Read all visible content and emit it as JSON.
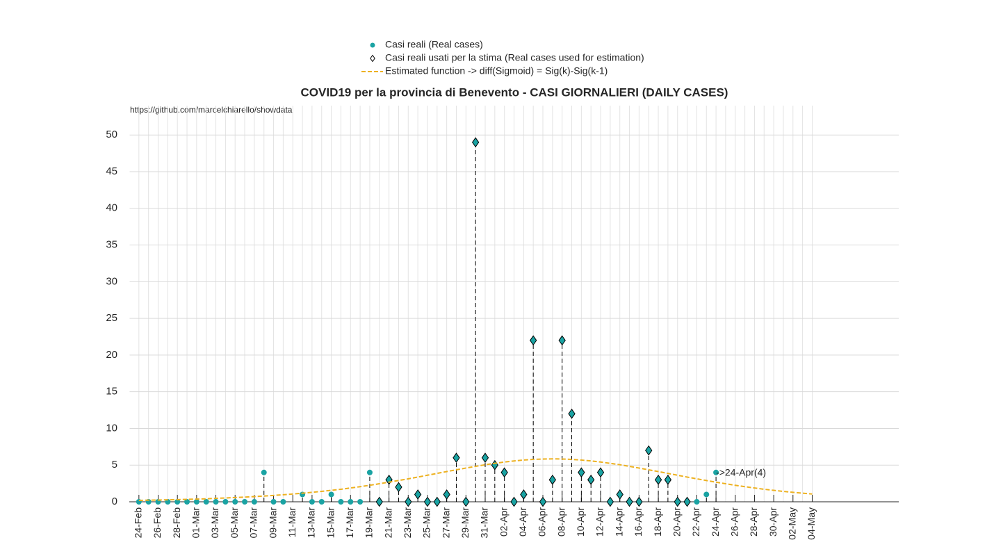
{
  "chart_data": {
    "type": "stem",
    "title": "COVID19 per la provincia di Benevento - CASI GIORNALIERI (DAILY CASES)",
    "source": "https://github.com/marcelchiarello/showdata",
    "categories": [
      "24-Feb",
      null,
      "26-Feb",
      null,
      "28-Feb",
      null,
      "01-Mar",
      null,
      "03-Mar",
      null,
      "05-Mar",
      null,
      "07-Mar",
      null,
      "09-Mar",
      null,
      "11-Mar",
      null,
      "13-Mar",
      null,
      "15-Mar",
      null,
      "17-Mar",
      null,
      "19-Mar",
      null,
      "21-Mar",
      null,
      "23-Mar",
      null,
      "25-Mar",
      null,
      "27-Mar",
      null,
      "29-Mar",
      null,
      "31-Mar",
      null,
      "02-Apr",
      null,
      "04-Apr",
      null,
      "06-Apr",
      null,
      "08-Apr",
      null,
      "10-Apr",
      null,
      "12-Apr",
      null,
      "14-Apr",
      null,
      "16-Apr",
      null,
      "18-Apr",
      null,
      "20-Apr",
      null,
      "22-Apr",
      null,
      "24-Apr",
      null,
      "26-Apr",
      null,
      "28-Apr",
      null,
      "30-Apr",
      null,
      "02-May",
      null,
      "04-May"
    ],
    "series": [
      {
        "name": "Casi reali (Real cases)",
        "color": "#1aa3a3",
        "marker": "circle",
        "values": [
          0,
          0,
          0,
          0,
          0,
          0,
          0,
          0,
          0,
          0,
          0,
          0,
          0,
          4,
          0,
          0,
          null,
          1,
          0,
          0,
          1,
          0,
          0,
          0,
          4,
          0,
          3,
          2,
          0,
          1,
          0,
          0,
          1,
          6,
          0,
          49,
          6,
          5,
          4,
          0,
          1,
          22,
          0,
          3,
          22,
          12,
          4,
          3,
          4,
          0,
          1,
          0,
          0,
          7,
          3,
          3,
          0,
          0,
          0,
          1,
          4,
          null,
          null,
          null,
          null,
          null,
          null,
          null,
          null,
          null,
          null
        ]
      },
      {
        "name": "Casi reali usati per la stima (Real cases used for estimation)",
        "color": "#1aa3a3",
        "marker": "diamond",
        "values": [
          null,
          null,
          null,
          null,
          null,
          null,
          null,
          null,
          null,
          null,
          null,
          null,
          null,
          null,
          null,
          null,
          null,
          null,
          null,
          null,
          null,
          null,
          null,
          null,
          null,
          0,
          3,
          2,
          0,
          1,
          0,
          0,
          1,
          6,
          0,
          49,
          6,
          5,
          4,
          0,
          1,
          22,
          0,
          3,
          22,
          12,
          4,
          3,
          4,
          0,
          1,
          0,
          0,
          7,
          3,
          3,
          0,
          0,
          null,
          null,
          null,
          null,
          null,
          null,
          null,
          null,
          null,
          null,
          null,
          null,
          null
        ]
      },
      {
        "name": "Estimated function -> diff(Sigmoid) = Sig(k)-Sig(k-1)",
        "color": "#edb120",
        "marker": "line",
        "values": [
          0.19,
          0.22,
          0.24,
          0.27,
          0.3,
          0.33,
          0.37,
          0.41,
          0.47,
          0.52,
          0.58,
          0.64,
          0.71,
          0.78,
          0.87,
          0.96,
          1.06,
          1.17,
          1.29,
          1.42,
          1.56,
          1.71,
          1.88,
          2.06,
          2.25,
          2.46,
          2.68,
          2.9,
          3.13,
          3.37,
          3.62,
          3.87,
          4.12,
          4.36,
          4.6,
          4.83,
          5.05,
          5.24,
          5.42,
          5.57,
          5.69,
          5.78,
          5.83,
          5.85,
          5.83,
          5.78,
          5.69,
          5.57,
          5.42,
          5.24,
          5.05,
          4.83,
          4.6,
          4.36,
          4.12,
          3.87,
          3.62,
          3.37,
          3.13,
          2.9,
          2.68,
          2.46,
          2.25,
          2.06,
          1.88,
          1.71,
          1.56,
          1.42,
          1.29,
          1.17,
          1.06
        ]
      }
    ],
    "annotation": {
      "text": "->24-Apr(4)",
      "color": "#0000ff"
    },
    "ylim": [
      0,
      54
    ],
    "yticks": [
      0,
      5,
      10,
      15,
      20,
      25,
      30,
      35,
      40,
      45,
      50
    ],
    "grid": true
  }
}
